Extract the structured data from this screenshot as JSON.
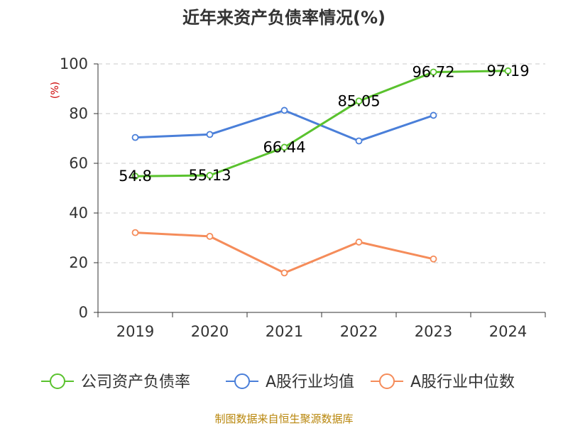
{
  "chart_data": {
    "type": "line",
    "title": "近年来资产负债率情况(%)",
    "ylabel": "(%)",
    "xlabel": "",
    "categories": [
      "2019",
      "2020",
      "2021",
      "2022",
      "2023",
      "2024"
    ],
    "ylim": [
      0,
      100
    ],
    "yticks": [
      0,
      20,
      40,
      60,
      80,
      100
    ],
    "grid": true,
    "legend_position": "bottom",
    "series": [
      {
        "name": "公司资产负债率",
        "color": "#5ac22e",
        "values": [
          54.8,
          55.13,
          66.44,
          85.05,
          96.72,
          97.19
        ],
        "labels": [
          "54.8",
          "55.13",
          "66.44",
          "85.05",
          "96.72",
          "97.19"
        ]
      },
      {
        "name": "A股行业均值",
        "color": "#4a7fd9",
        "values": [
          70.4,
          71.6,
          81.3,
          69.0,
          79.3,
          null
        ]
      },
      {
        "name": "A股行业中位数",
        "color": "#f58c5a",
        "values": [
          32.1,
          30.6,
          15.9,
          28.3,
          21.5,
          null
        ]
      }
    ]
  },
  "footer": {
    "source": "制图数据来自恒生聚源数据库"
  }
}
